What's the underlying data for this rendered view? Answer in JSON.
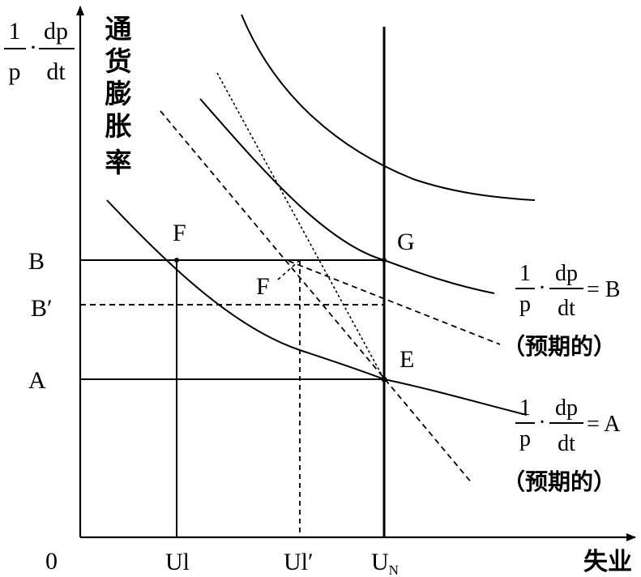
{
  "axes": {
    "origin": "0",
    "x_axis_label": "失业",
    "y_axis_formula": {
      "numerator_left": "1",
      "denominator_left": "p",
      "dot": "·",
      "numerator_right": "dp",
      "denominator_right": "dt"
    },
    "y_axis_label_chars": [
      "通",
      "货",
      "膨",
      "胀",
      "率"
    ]
  },
  "y_ticks": {
    "b": "B",
    "b_prime": "B′",
    "a": "A"
  },
  "x_ticks": {
    "ul": "Ul",
    "ul_prime": "Ul′",
    "un_main": "U",
    "un_sub": "N"
  },
  "points": {
    "f": "F",
    "f_prime": "F",
    "g": "G",
    "e": "E"
  },
  "curve_labels": {
    "b": {
      "num1": "1",
      "den1": "p",
      "dot": "·",
      "num2": "dp",
      "den2": "dt",
      "equals": "= B",
      "note": "（预期的）"
    },
    "a": {
      "num1": "1",
      "den1": "p",
      "dot": "·",
      "num2": "dp",
      "den2": "dt",
      "equals": "= A",
      "note": "（预期的）"
    }
  },
  "colors": {
    "ink": "#000000",
    "background": "#ffffff"
  }
}
